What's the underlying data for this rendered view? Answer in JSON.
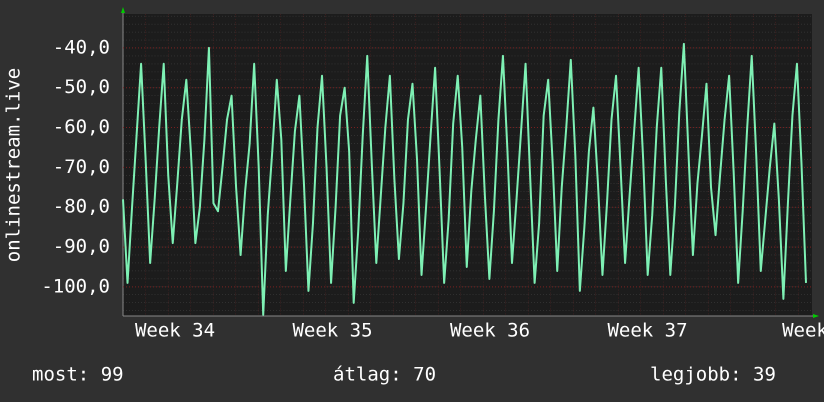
{
  "chart_data": {
    "type": "line",
    "y_label": "onlinestream.live",
    "color": "#7ef0b4",
    "values": [
      -78,
      -99,
      -80,
      -62,
      -44,
      -68,
      -94,
      -78,
      -60,
      -44,
      -72,
      -89,
      -74,
      -58,
      -48,
      -66,
      -89,
      -80,
      -63,
      -40,
      -79,
      -81,
      -70,
      -58,
      -52,
      -75,
      -92,
      -76,
      -64,
      -44,
      -70,
      -107,
      -82,
      -66,
      -48,
      -63,
      -96,
      -78,
      -61,
      -52,
      -74,
      -101,
      -84,
      -60,
      -47,
      -70,
      -99,
      -80,
      -57,
      -50,
      -66,
      -104,
      -86,
      -62,
      -42,
      -69,
      -94,
      -77,
      -60,
      -47,
      -73,
      -93,
      -79,
      -58,
      -49,
      -68,
      -97,
      -80,
      -62,
      -45,
      -71,
      -99,
      -83,
      -59,
      -47,
      -65,
      -95,
      -76,
      -63,
      -52,
      -77,
      -98,
      -81,
      -58,
      -42,
      -66,
      -94,
      -78,
      -61,
      -44,
      -72,
      -99,
      -84,
      -57,
      -48,
      -69,
      -96,
      -75,
      -60,
      -43,
      -67,
      -101,
      -85,
      -66,
      -55,
      -74,
      -97,
      -79,
      -58,
      -47,
      -70,
      -94,
      -77,
      -61,
      -45,
      -68,
      -97,
      -82,
      -60,
      -45,
      -73,
      -97,
      -80,
      -56,
      -39,
      -66,
      -92,
      -74,
      -62,
      -49,
      -75,
      -87,
      -72,
      -58,
      -47,
      -71,
      -99,
      -81,
      -60,
      -42,
      -67,
      -96,
      -83,
      -70,
      -59,
      -78,
      -103,
      -79,
      -57,
      -44,
      -69,
      -99
    ],
    "x_labels": [
      "Week 34",
      "Week 35",
      "Week 36",
      "Week 37",
      "Week"
    ],
    "ylim": [
      -107.3,
      -31.5
    ],
    "yticks": [
      {
        "value": -40,
        "label": "-40,0"
      },
      {
        "value": -50,
        "label": "-50,0"
      },
      {
        "value": -60,
        "label": "-60,0"
      },
      {
        "value": -70,
        "label": "-70,0"
      },
      {
        "value": -80,
        "label": "-80,0"
      },
      {
        "value": -90,
        "label": "-90,0"
      },
      {
        "value": -100,
        "label": "-100,0"
      }
    ],
    "grid": true,
    "stats": [
      {
        "label": "most:",
        "value": 99
      },
      {
        "label": "átlag:",
        "value": 70
      },
      {
        "label": "legjobb:",
        "value": 39
      }
    ]
  }
}
